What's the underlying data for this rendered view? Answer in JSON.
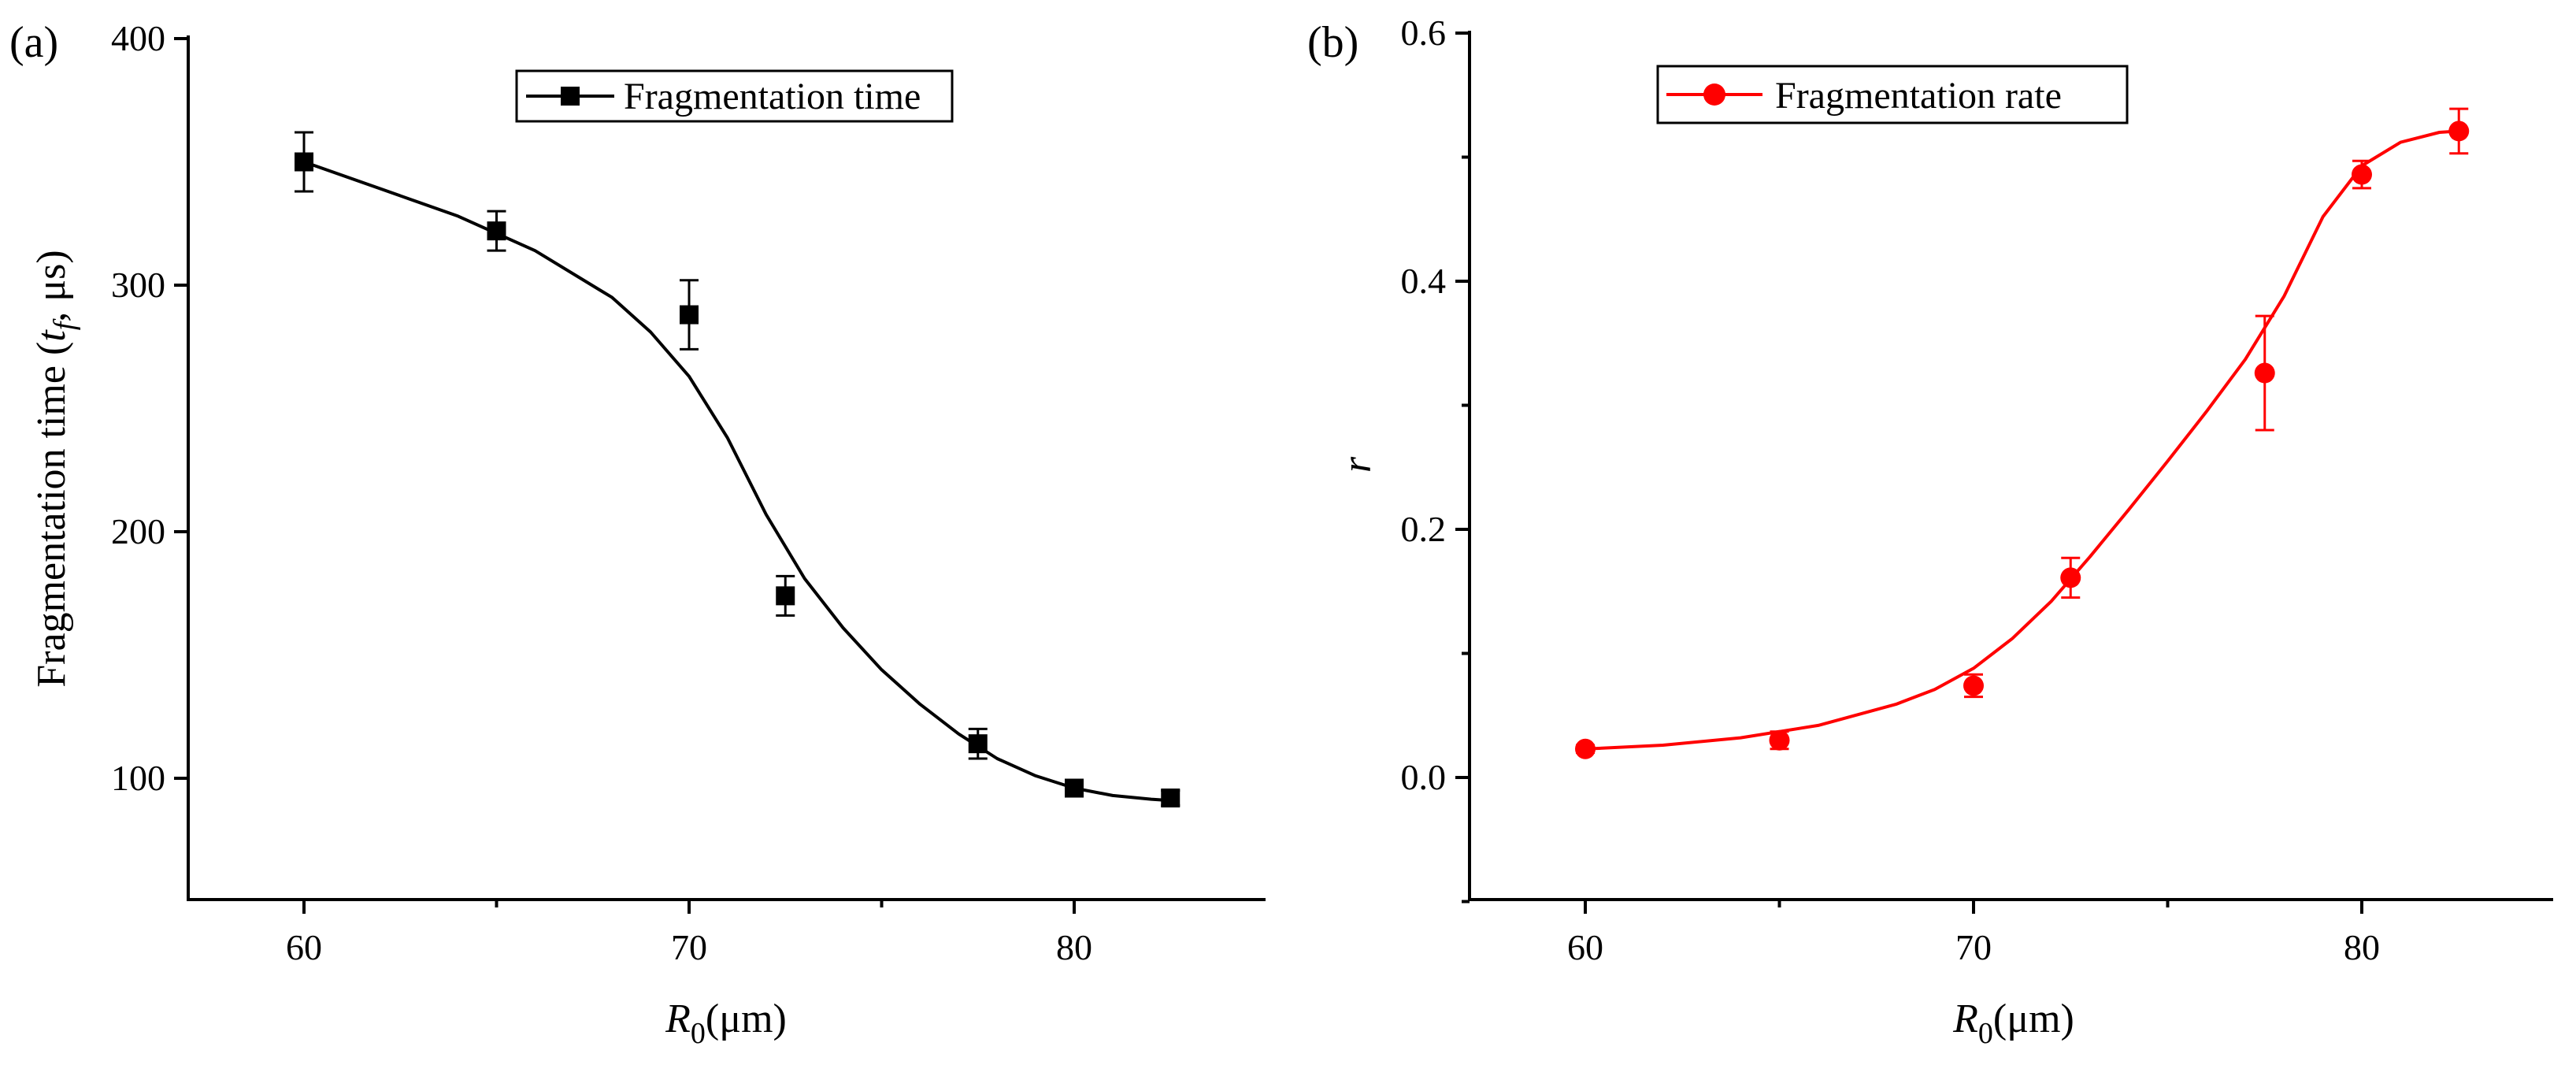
{
  "chart_data": [
    {
      "panel_label": "(a)",
      "type": "scatter",
      "ylabel_main": "Fragmentation time (",
      "ylabel_italic": "t",
      "ylabel_sub": "f",
      "ylabel_tail": ", μs)",
      "xlabel_italic": "R",
      "xlabel_sub": "0",
      "xlabel_tail": "(μm)",
      "xlim": [
        57,
        85
      ],
      "ylim": [
        50,
        400
      ],
      "xticks": [
        60,
        70,
        80
      ],
      "xtick_labels": [
        "60",
        "70",
        "80"
      ],
      "yticks": [
        100,
        200,
        300,
        400
      ],
      "ytick_labels": [
        "100",
        "200",
        "300",
        "400"
      ],
      "legend": "Fragmentation time",
      "legend_position": "top-center",
      "series_color": "#000000",
      "marker": "square",
      "x": [
        60,
        65,
        70,
        72.5,
        77.5,
        80,
        82.5
      ],
      "y": [
        350,
        322,
        288,
        174,
        114,
        96,
        92
      ],
      "yerr": [
        12,
        8,
        14,
        8,
        6,
        3,
        3
      ],
      "fit_curve": {
        "x": [
          60,
          62,
          64,
          66,
          68,
          69,
          70,
          71,
          72,
          73,
          74,
          75,
          76,
          77,
          78,
          79,
          80,
          81,
          82,
          82.5
        ],
        "y": [
          350,
          339,
          328,
          314,
          295,
          281,
          263,
          238,
          207,
          181,
          161,
          144,
          130,
          118,
          108,
          101,
          96,
          93,
          91.5,
          91
        ]
      }
    },
    {
      "panel_label": "(b)",
      "type": "scatter",
      "ylabel_italic": "r",
      "xlabel_italic": "R",
      "xlabel_sub": "0",
      "xlabel_tail": "(μm)",
      "xlim": [
        57,
        85
      ],
      "ylim": [
        -0.1,
        0.6
      ],
      "xticks": [
        60,
        70,
        80
      ],
      "xtick_labels": [
        "60",
        "70",
        "80"
      ],
      "yticks": [
        0.0,
        0.2,
        0.4,
        0.6
      ],
      "ytick_labels": [
        "0.0",
        "0.2",
        "0.4",
        "0.6"
      ],
      "legend": "Fragmentation rate",
      "legend_position": "top-center",
      "series_color": "#ff0000",
      "marker": "circle",
      "x": [
        60,
        65,
        70,
        72.5,
        77.5,
        80,
        82.5
      ],
      "y": [
        0.023,
        0.03,
        0.074,
        0.161,
        0.326,
        0.486,
        0.521
      ],
      "yerr": [
        0.003,
        0.007,
        0.009,
        0.016,
        0.046,
        0.011,
        0.018
      ],
      "fit_curve": {
        "x": [
          60,
          62,
          64,
          66,
          68,
          69,
          70,
          71,
          72,
          73,
          74,
          75,
          76,
          77,
          78,
          79,
          80,
          81,
          82,
          82.5
        ],
        "y": [
          0.023,
          0.026,
          0.032,
          0.042,
          0.059,
          0.071,
          0.088,
          0.112,
          0.142,
          0.178,
          0.216,
          0.255,
          0.295,
          0.337,
          0.388,
          0.452,
          0.493,
          0.512,
          0.52,
          0.521
        ]
      }
    }
  ]
}
